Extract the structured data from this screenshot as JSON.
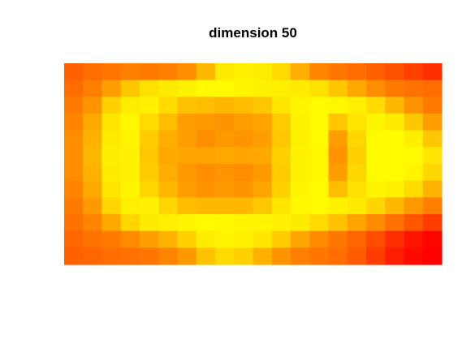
{
  "chart_data": {
    "type": "heatmap",
    "title": "dimension 50",
    "xlabel": "",
    "ylabel": "",
    "grid": false,
    "axes_visible": false,
    "colormap": "autumn",
    "colorbar": false,
    "colormap_stops": [
      "#ff0000",
      "#ff8000",
      "#ffff00"
    ],
    "color_range": [
      0,
      1
    ],
    "n_cols": 20,
    "n_rows": 12,
    "values": [
      [
        0.38,
        0.42,
        0.46,
        0.5,
        0.48,
        0.5,
        0.55,
        0.72,
        0.92,
        0.95,
        0.93,
        0.85,
        0.68,
        0.52,
        0.46,
        0.42,
        0.38,
        0.32,
        0.25,
        0.18
      ],
      [
        0.42,
        0.5,
        0.62,
        0.78,
        0.88,
        0.92,
        0.95,
        0.98,
        0.98,
        0.96,
        0.95,
        0.94,
        0.92,
        0.88,
        0.78,
        0.66,
        0.55,
        0.48,
        0.44,
        0.42
      ],
      [
        0.48,
        0.58,
        0.82,
        0.93,
        0.95,
        0.86,
        0.76,
        0.74,
        0.72,
        0.74,
        0.78,
        0.9,
        0.96,
        0.98,
        0.97,
        0.94,
        0.86,
        0.72,
        0.58,
        0.48
      ],
      [
        0.52,
        0.66,
        0.9,
        0.97,
        0.86,
        0.74,
        0.62,
        0.6,
        0.58,
        0.62,
        0.64,
        0.8,
        0.95,
        0.98,
        0.78,
        0.9,
        0.96,
        0.92,
        0.78,
        0.62
      ],
      [
        0.55,
        0.7,
        0.92,
        0.96,
        0.8,
        0.68,
        0.62,
        0.56,
        0.6,
        0.58,
        0.62,
        0.78,
        0.94,
        0.98,
        0.62,
        0.84,
        0.98,
        0.99,
        0.94,
        0.78
      ],
      [
        0.56,
        0.72,
        0.93,
        0.95,
        0.78,
        0.66,
        0.64,
        0.64,
        0.66,
        0.64,
        0.66,
        0.82,
        0.95,
        0.97,
        0.58,
        0.82,
        0.98,
        0.99,
        0.98,
        0.9
      ],
      [
        0.55,
        0.7,
        0.92,
        0.95,
        0.8,
        0.68,
        0.6,
        0.56,
        0.58,
        0.56,
        0.6,
        0.8,
        0.95,
        0.97,
        0.62,
        0.84,
        0.98,
        0.99,
        0.96,
        0.84
      ],
      [
        0.52,
        0.66,
        0.9,
        0.96,
        0.84,
        0.72,
        0.62,
        0.58,
        0.6,
        0.58,
        0.64,
        0.82,
        0.96,
        0.98,
        0.74,
        0.88,
        0.96,
        0.94,
        0.86,
        0.7
      ],
      [
        0.48,
        0.6,
        0.84,
        0.94,
        0.95,
        0.84,
        0.74,
        0.72,
        0.72,
        0.72,
        0.78,
        0.9,
        0.97,
        0.98,
        0.95,
        0.92,
        0.84,
        0.72,
        0.6,
        0.5
      ],
      [
        0.44,
        0.52,
        0.66,
        0.84,
        0.92,
        0.94,
        0.96,
        0.98,
        0.97,
        0.96,
        0.96,
        0.95,
        0.92,
        0.86,
        0.76,
        0.64,
        0.54,
        0.44,
        0.34,
        0.24
      ],
      [
        0.4,
        0.44,
        0.48,
        0.54,
        0.62,
        0.7,
        0.82,
        0.93,
        0.96,
        0.95,
        0.9,
        0.8,
        0.64,
        0.54,
        0.46,
        0.4,
        0.3,
        0.18,
        0.08,
        0.02
      ],
      [
        0.38,
        0.4,
        0.42,
        0.44,
        0.46,
        0.52,
        0.6,
        0.76,
        0.86,
        0.82,
        0.7,
        0.58,
        0.5,
        0.46,
        0.42,
        0.36,
        0.24,
        0.12,
        0.04,
        0.0
      ]
    ]
  }
}
